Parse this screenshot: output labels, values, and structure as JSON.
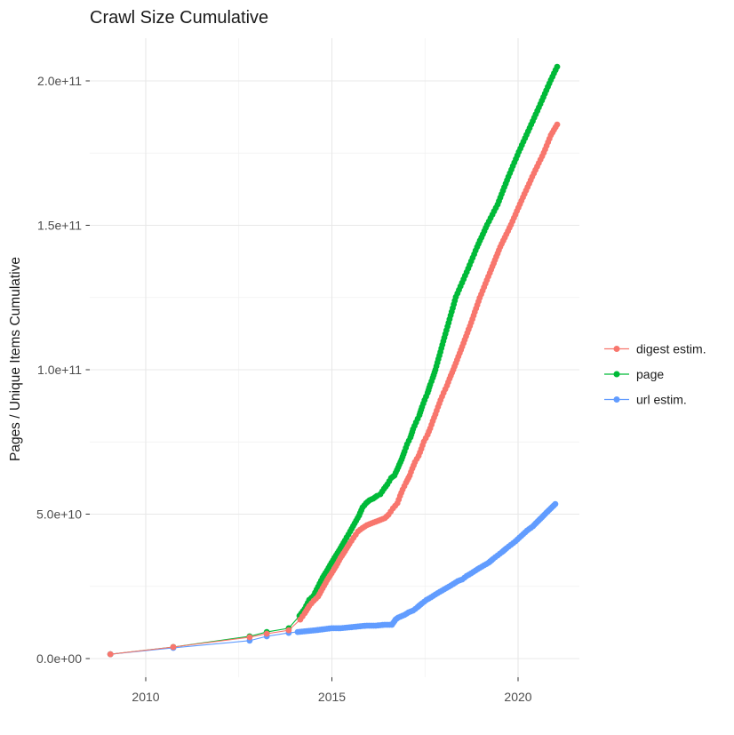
{
  "title": "Crawl Size Cumulative",
  "chart_data": {
    "type": "scatter",
    "mode": "line+points",
    "title": "Crawl Size Cumulative",
    "xlabel": "",
    "ylabel": "Pages / Unique Items Cumulative",
    "value_unit": "billions (value x 1e9 pages / unique items)",
    "grid": "on",
    "legend_position": "right",
    "xlim": [
      2008.4,
      2021.7
    ],
    "ylim_billions": [
      -7.5,
      215
    ],
    "x_ticks": [
      {
        "value": 2010,
        "label": "2010"
      },
      {
        "value": 2015,
        "label": "2015"
      },
      {
        "value": 2020,
        "label": "2020"
      }
    ],
    "x_minor_ticks": [
      2012.5,
      2017.5
    ],
    "y_ticks": [
      {
        "value": 0,
        "label": "0.0e+00"
      },
      {
        "value": 50,
        "label": "5.0e+10"
      },
      {
        "value": 100,
        "label": "1.0e+11"
      },
      {
        "value": 150,
        "label": "1.5e+11"
      },
      {
        "value": 200,
        "label": "2.0e+11"
      }
    ],
    "y_minor_ticks": [
      25,
      75,
      125,
      175
    ],
    "series": [
      {
        "name": "digest estim.",
        "color": "#F8766D",
        "points": [
          [
            2009.05,
            1.5
          ],
          [
            2010.74,
            4.0
          ],
          [
            2012.79,
            7.4
          ],
          [
            2013.25,
            8.6
          ],
          [
            2013.84,
            9.8
          ],
          [
            2014.15,
            13.5
          ],
          [
            2014.27,
            15.7
          ],
          [
            2014.39,
            18.2
          ],
          [
            2014.51,
            20.0
          ],
          [
            2014.63,
            21.5
          ],
          [
            2014.75,
            24.3
          ],
          [
            2014.87,
            27.1
          ],
          [
            2014.99,
            29.5
          ],
          [
            2015.11,
            32.0
          ],
          [
            2015.23,
            34.8
          ],
          [
            2015.35,
            37.2
          ],
          [
            2015.47,
            39.7
          ],
          [
            2015.58,
            41.8
          ],
          [
            2015.7,
            44.0
          ],
          [
            2015.82,
            45.2
          ],
          [
            2015.94,
            46.2
          ],
          [
            2016.06,
            46.8
          ],
          [
            2016.18,
            47.4
          ],
          [
            2016.3,
            48.0
          ],
          [
            2016.42,
            48.6
          ],
          [
            2016.52,
            49.8
          ],
          [
            2016.64,
            52.0
          ],
          [
            2016.76,
            53.8
          ],
          [
            2016.83,
            56.3
          ],
          [
            2016.9,
            58.5
          ],
          [
            2016.99,
            60.9
          ],
          [
            2017.09,
            63.4
          ],
          [
            2017.16,
            65.8
          ],
          [
            2017.23,
            68.0
          ],
          [
            2017.33,
            70.2
          ],
          [
            2017.4,
            72.6
          ],
          [
            2017.47,
            75.1
          ],
          [
            2017.57,
            77.5
          ],
          [
            2017.64,
            79.7
          ],
          [
            2017.71,
            82.2
          ],
          [
            2017.78,
            84.6
          ],
          [
            2017.85,
            87.1
          ],
          [
            2017.92,
            89.5
          ],
          [
            2018.0,
            92.0
          ],
          [
            2018.09,
            94.5
          ],
          [
            2018.16,
            96.9
          ],
          [
            2018.26,
            100.0
          ],
          [
            2018.5,
            108.0
          ],
          [
            2018.74,
            116.3
          ],
          [
            2018.97,
            124.9
          ],
          [
            2019.24,
            133.5
          ],
          [
            2019.52,
            142.5
          ],
          [
            2019.81,
            150.2
          ],
          [
            2020.09,
            158.5
          ],
          [
            2020.38,
            166.8
          ],
          [
            2020.69,
            175.1
          ],
          [
            2020.88,
            181.2
          ],
          [
            2021.05,
            184.9
          ]
        ]
      },
      {
        "name": "page",
        "color": "#00BA38",
        "points": [
          [
            2009.05,
            1.5
          ],
          [
            2010.74,
            4.0
          ],
          [
            2012.79,
            7.7
          ],
          [
            2013.25,
            9.2
          ],
          [
            2013.84,
            10.5
          ],
          [
            2014.13,
            14.8
          ],
          [
            2014.27,
            17.2
          ],
          [
            2014.39,
            20.3
          ],
          [
            2014.51,
            21.8
          ],
          [
            2014.63,
            24.9
          ],
          [
            2014.75,
            28.0
          ],
          [
            2014.87,
            30.5
          ],
          [
            2014.99,
            33.2
          ],
          [
            2015.11,
            35.7
          ],
          [
            2015.23,
            38.2
          ],
          [
            2015.35,
            40.9
          ],
          [
            2015.49,
            44.0
          ],
          [
            2015.61,
            46.8
          ],
          [
            2015.73,
            49.5
          ],
          [
            2015.82,
            52.3
          ],
          [
            2015.92,
            53.8
          ],
          [
            2016.01,
            54.8
          ],
          [
            2016.11,
            55.4
          ],
          [
            2016.21,
            56.3
          ],
          [
            2016.3,
            56.9
          ],
          [
            2016.4,
            58.8
          ],
          [
            2016.49,
            60.3
          ],
          [
            2016.59,
            62.5
          ],
          [
            2016.68,
            63.4
          ],
          [
            2016.78,
            66.2
          ],
          [
            2016.87,
            68.9
          ],
          [
            2016.95,
            71.7
          ],
          [
            2017.02,
            74.2
          ],
          [
            2017.11,
            76.6
          ],
          [
            2017.18,
            79.4
          ],
          [
            2017.26,
            81.8
          ],
          [
            2017.35,
            84.3
          ],
          [
            2017.42,
            87.1
          ],
          [
            2017.49,
            89.5
          ],
          [
            2017.57,
            92.0
          ],
          [
            2017.64,
            94.8
          ],
          [
            2017.71,
            97.2
          ],
          [
            2017.78,
            100.0
          ],
          [
            2018.02,
            111.1
          ],
          [
            2018.33,
            125.2
          ],
          [
            2018.62,
            133.8
          ],
          [
            2018.9,
            142.5
          ],
          [
            2019.17,
            150.2
          ],
          [
            2019.45,
            157.2
          ],
          [
            2019.74,
            166.8
          ],
          [
            2020.02,
            175.4
          ],
          [
            2020.31,
            183.7
          ],
          [
            2020.6,
            192.0
          ],
          [
            2020.88,
            200.3
          ],
          [
            2021.05,
            204.9
          ]
        ]
      },
      {
        "name": "url estim.",
        "color": "#619CFF",
        "points": [
          [
            2009.05,
            1.5
          ],
          [
            2010.74,
            3.7
          ],
          [
            2012.79,
            6.2
          ],
          [
            2013.25,
            7.7
          ],
          [
            2013.84,
            8.9
          ],
          [
            2014.08,
            9.2
          ],
          [
            2014.32,
            9.5
          ],
          [
            2014.56,
            9.8
          ],
          [
            2014.8,
            10.2
          ],
          [
            2014.99,
            10.5
          ],
          [
            2015.23,
            10.5
          ],
          [
            2015.47,
            10.8
          ],
          [
            2015.7,
            11.1
          ],
          [
            2015.94,
            11.4
          ],
          [
            2016.18,
            11.4
          ],
          [
            2016.42,
            11.7
          ],
          [
            2016.61,
            11.7
          ],
          [
            2016.71,
            13.5
          ],
          [
            2016.78,
            14.2
          ],
          [
            2016.95,
            15.1
          ],
          [
            2017.06,
            16.0
          ],
          [
            2017.18,
            16.6
          ],
          [
            2017.3,
            17.8
          ],
          [
            2017.42,
            19.1
          ],
          [
            2017.54,
            20.3
          ],
          [
            2017.66,
            21.2
          ],
          [
            2017.78,
            22.2
          ],
          [
            2017.9,
            23.1
          ],
          [
            2018.02,
            24.0
          ],
          [
            2018.14,
            24.9
          ],
          [
            2018.26,
            25.8
          ],
          [
            2018.38,
            26.8
          ],
          [
            2018.5,
            27.4
          ],
          [
            2018.62,
            28.6
          ],
          [
            2018.74,
            29.5
          ],
          [
            2018.86,
            30.5
          ],
          [
            2018.97,
            31.4
          ],
          [
            2019.09,
            32.3
          ],
          [
            2019.21,
            33.2
          ],
          [
            2019.33,
            34.5
          ],
          [
            2019.45,
            35.7
          ],
          [
            2019.57,
            36.9
          ],
          [
            2019.69,
            38.2
          ],
          [
            2019.81,
            39.4
          ],
          [
            2019.93,
            40.6
          ],
          [
            2020.09,
            42.5
          ],
          [
            2020.24,
            44.3
          ],
          [
            2020.4,
            45.8
          ],
          [
            2020.52,
            47.4
          ],
          [
            2020.64,
            48.9
          ],
          [
            2020.76,
            50.5
          ],
          [
            2020.88,
            52.0
          ],
          [
            2021.0,
            53.5
          ]
        ]
      }
    ]
  }
}
